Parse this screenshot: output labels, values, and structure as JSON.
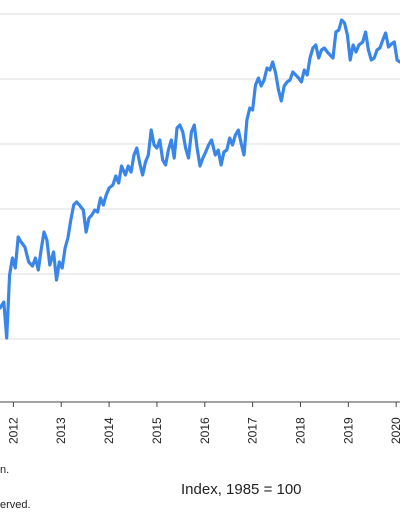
{
  "chart_data": {
    "type": "line",
    "title": "",
    "xlabel": "",
    "ylabel": "",
    "x_tick_labels": [
      "2012",
      "2013",
      "2014",
      "2015",
      "2016",
      "2017",
      "2018",
      "2019",
      "2020"
    ],
    "xlim": [
      2011.72,
      2020.08
    ],
    "grid": true,
    "legend": "none",
    "line_color": "#3a86e8",
    "series": [
      {
        "points": [
          [
            2011.72,
            308
          ],
          [
            2011.8,
            302
          ],
          [
            2011.86,
            338
          ],
          [
            2011.92,
            275
          ],
          [
            2011.98,
            258
          ],
          [
            2012.04,
            268
          ],
          [
            2012.1,
            237
          ],
          [
            2012.16,
            242
          ],
          [
            2012.24,
            247
          ],
          [
            2012.32,
            262
          ],
          [
            2012.4,
            266
          ],
          [
            2012.46,
            258
          ],
          [
            2012.52,
            270
          ],
          [
            2012.58,
            250
          ],
          [
            2012.64,
            232
          ],
          [
            2012.7,
            240
          ],
          [
            2012.76,
            265
          ],
          [
            2012.84,
            252
          ],
          [
            2012.9,
            280
          ],
          [
            2012.96,
            262
          ],
          [
            2013.02,
            268
          ],
          [
            2013.08,
            248
          ],
          [
            2013.14,
            238
          ],
          [
            2013.2,
            220
          ],
          [
            2013.26,
            205
          ],
          [
            2013.32,
            202
          ],
          [
            2013.38,
            205
          ],
          [
            2013.46,
            210
          ],
          [
            2013.52,
            232
          ],
          [
            2013.58,
            218
          ],
          [
            2013.64,
            215
          ],
          [
            2013.7,
            210
          ],
          [
            2013.76,
            212
          ],
          [
            2013.82,
            198
          ],
          [
            2013.88,
            205
          ],
          [
            2013.94,
            195
          ],
          [
            2014.0,
            188
          ],
          [
            2014.08,
            185
          ],
          [
            2014.14,
            176
          ],
          [
            2014.2,
            183
          ],
          [
            2014.26,
            166
          ],
          [
            2014.34,
            175
          ],
          [
            2014.4,
            166
          ],
          [
            2014.46,
            172
          ],
          [
            2014.52,
            155
          ],
          [
            2014.58,
            148
          ],
          [
            2014.64,
            163
          ],
          [
            2014.7,
            175
          ],
          [
            2014.76,
            162
          ],
          [
            2014.82,
            155
          ],
          [
            2014.88,
            130
          ],
          [
            2014.94,
            145
          ],
          [
            2015.0,
            148
          ],
          [
            2015.06,
            140
          ],
          [
            2015.12,
            160
          ],
          [
            2015.18,
            165
          ],
          [
            2015.24,
            150
          ],
          [
            2015.3,
            140
          ],
          [
            2015.36,
            158
          ],
          [
            2015.42,
            128
          ],
          [
            2015.48,
            125
          ],
          [
            2015.54,
            132
          ],
          [
            2015.6,
            148
          ],
          [
            2015.66,
            158
          ],
          [
            2015.72,
            132
          ],
          [
            2015.78,
            125
          ],
          [
            2015.84,
            148
          ],
          [
            2015.9,
            166
          ],
          [
            2015.96,
            158
          ],
          [
            2016.02,
            152
          ],
          [
            2016.08,
            145
          ],
          [
            2016.14,
            140
          ],
          [
            2016.22,
            155
          ],
          [
            2016.28,
            150
          ],
          [
            2016.34,
            165
          ],
          [
            2016.4,
            152
          ],
          [
            2016.46,
            150
          ],
          [
            2016.52,
            138
          ],
          [
            2016.58,
            145
          ],
          [
            2016.64,
            135
          ],
          [
            2016.7,
            130
          ],
          [
            2016.76,
            143
          ],
          [
            2016.82,
            155
          ],
          [
            2016.88,
            120
          ],
          [
            2016.94,
            108
          ],
          [
            2017.0,
            110
          ],
          [
            2017.06,
            85
          ],
          [
            2017.12,
            78
          ],
          [
            2017.18,
            86
          ],
          [
            2017.24,
            80
          ],
          [
            2017.3,
            68
          ],
          [
            2017.36,
            70
          ],
          [
            2017.42,
            62
          ],
          [
            2017.48,
            73
          ],
          [
            2017.54,
            90
          ],
          [
            2017.6,
            101
          ],
          [
            2017.66,
            86
          ],
          [
            2017.72,
            82
          ],
          [
            2017.78,
            80
          ],
          [
            2017.84,
            72
          ],
          [
            2017.9,
            75
          ],
          [
            2017.96,
            78
          ],
          [
            2018.02,
            82
          ],
          [
            2018.08,
            70
          ],
          [
            2018.14,
            75
          ],
          [
            2018.2,
            58
          ],
          [
            2018.26,
            48
          ],
          [
            2018.32,
            45
          ],
          [
            2018.38,
            58
          ],
          [
            2018.44,
            50
          ],
          [
            2018.5,
            48
          ],
          [
            2018.56,
            52
          ],
          [
            2018.62,
            55
          ],
          [
            2018.68,
            58
          ],
          [
            2018.74,
            32
          ],
          [
            2018.8,
            30
          ],
          [
            2018.86,
            20
          ],
          [
            2018.92,
            23
          ],
          [
            2018.98,
            35
          ],
          [
            2019.04,
            60
          ],
          [
            2019.1,
            45
          ],
          [
            2019.16,
            52
          ],
          [
            2019.22,
            45
          ],
          [
            2019.3,
            42
          ],
          [
            2019.36,
            32
          ],
          [
            2019.42,
            50
          ],
          [
            2019.48,
            60
          ],
          [
            2019.54,
            58
          ],
          [
            2019.6,
            50
          ],
          [
            2019.66,
            48
          ],
          [
            2019.72,
            40
          ],
          [
            2019.78,
            33
          ],
          [
            2019.84,
            47
          ],
          [
            2019.9,
            44
          ],
          [
            2019.96,
            42
          ],
          [
            2020.02,
            60
          ],
          [
            2020.08,
            62
          ]
        ]
      }
    ]
  },
  "footnotes": {
    "line1": "n.",
    "line2": "erved."
  },
  "index_note": "Index, 1985 = 100",
  "colors": {
    "line": "#3a86e8",
    "grid": "#dddddd",
    "axis": "#444444",
    "text": "#222222"
  }
}
